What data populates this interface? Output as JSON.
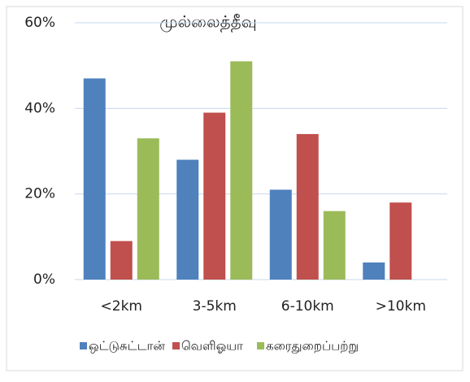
{
  "chart_data": {
    "type": "bar",
    "title": "முல்லைத்தீவு",
    "categories": [
      "<2km",
      "3-5km",
      "6-10km",
      ">10km"
    ],
    "series": [
      {
        "name": "ஒட்டுசுட்டான்",
        "color": "#4f81bd",
        "values": [
          47,
          28,
          21,
          4
        ]
      },
      {
        "name": "வெளிஓயா",
        "color": "#c0504d",
        "values": [
          9,
          39,
          34,
          18
        ]
      },
      {
        "name": "கரைதுறைப்பற்று",
        "color": "#9bbb59",
        "values": [
          33,
          51,
          16,
          0
        ]
      }
    ],
    "ylim": [
      0,
      60
    ],
    "yticks": [
      {
        "value": 0,
        "label": "0%"
      },
      {
        "value": 20,
        "label": "20%"
      },
      {
        "value": 40,
        "label": "40%"
      },
      {
        "value": 60,
        "label": "60%"
      }
    ],
    "grid": true,
    "legend": "bottom"
  }
}
